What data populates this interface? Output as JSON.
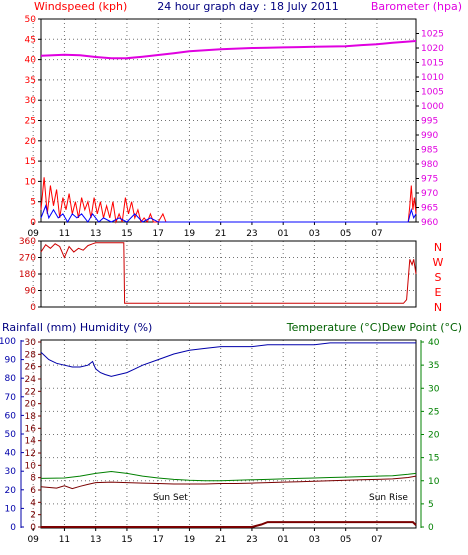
{
  "chart_data": [
    {
      "type": "line",
      "title": "24 hour graph day : 18 July 2011",
      "ylabel_left": "Windspeed (kph)",
      "ylabel_right": "Barometer (hpa)",
      "x_ticks": [
        "11",
        "13",
        "15",
        "17",
        "19",
        "21",
        "23",
        "01",
        "03",
        "05",
        "07",
        "09"
      ],
      "xlim_hours": [
        9.5,
        33.5
      ],
      "ylim_left": [
        0,
        50
      ],
      "ylim_right": [
        960,
        1030
      ],
      "left_ticks": [
        0,
        5,
        10,
        15,
        20,
        25,
        30,
        35,
        40,
        45,
        50
      ],
      "right_ticks": [
        960,
        965,
        970,
        975,
        980,
        985,
        990,
        995,
        1000,
        1005,
        1010,
        1015,
        1020,
        1025
      ],
      "grid": true,
      "series": [
        {
          "name": "Barometer",
          "axis": "right",
          "color": "#e000e0",
          "points": [
            [
              9.5,
              1017.3
            ],
            [
              11.0,
              1017.7
            ],
            [
              12.0,
              1017.5
            ],
            [
              13.0,
              1016.9
            ],
            [
              14.0,
              1016.5
            ],
            [
              15.0,
              1016.5
            ],
            [
              16.0,
              1017.0
            ],
            [
              17.0,
              1017.6
            ],
            [
              18.0,
              1018.2
            ],
            [
              19.0,
              1018.9
            ],
            [
              20.0,
              1019.2
            ],
            [
              21.0,
              1019.6
            ],
            [
              22.0,
              1019.8
            ],
            [
              23.0,
              1020.0
            ],
            [
              24.0,
              1020.1
            ],
            [
              25.0,
              1020.2
            ],
            [
              26.0,
              1020.3
            ],
            [
              27.0,
              1020.4
            ],
            [
              28.0,
              1020.5
            ],
            [
              29.0,
              1020.6
            ],
            [
              30.0,
              1021.0
            ],
            [
              31.0,
              1021.3
            ],
            [
              32.0,
              1021.8
            ],
            [
              33.5,
              1022.4
            ]
          ]
        },
        {
          "name": "Wind gust",
          "axis": "left",
          "color": "#ff0000",
          "points": [
            [
              9.5,
              3
            ],
            [
              9.7,
              11
            ],
            [
              9.9,
              2
            ],
            [
              10.1,
              9
            ],
            [
              10.3,
              4
            ],
            [
              10.5,
              8
            ],
            [
              10.7,
              1
            ],
            [
              10.9,
              6
            ],
            [
              11.1,
              3
            ],
            [
              11.3,
              7
            ],
            [
              11.5,
              2
            ],
            [
              11.7,
              5
            ],
            [
              11.9,
              1
            ],
            [
              12.1,
              6
            ],
            [
              12.3,
              3
            ],
            [
              12.5,
              5
            ],
            [
              12.7,
              1
            ],
            [
              12.9,
              6
            ],
            [
              13.1,
              2
            ],
            [
              13.3,
              5
            ],
            [
              13.5,
              1
            ],
            [
              13.7,
              4
            ],
            [
              13.9,
              1
            ],
            [
              14.1,
              5
            ],
            [
              14.3,
              0
            ],
            [
              14.5,
              2
            ],
            [
              14.7,
              0
            ],
            [
              14.9,
              6
            ],
            [
              15.1,
              2
            ],
            [
              15.3,
              5
            ],
            [
              15.5,
              1
            ],
            [
              15.7,
              3
            ],
            [
              15.9,
              0
            ],
            [
              16.1,
              1
            ],
            [
              16.3,
              0
            ],
            [
              16.5,
              2
            ],
            [
              16.7,
              0
            ],
            [
              17.0,
              0
            ],
            [
              17.3,
              2
            ],
            [
              17.5,
              0
            ],
            [
              33.0,
              0
            ],
            [
              33.1,
              4
            ],
            [
              33.2,
              9
            ],
            [
              33.3,
              3
            ],
            [
              33.4,
              6
            ],
            [
              33.5,
              2
            ]
          ]
        },
        {
          "name": "Wind speed",
          "axis": "left",
          "color": "#0000ff",
          "points": [
            [
              9.5,
              1
            ],
            [
              9.8,
              4
            ],
            [
              10.0,
              1
            ],
            [
              10.3,
              3
            ],
            [
              10.6,
              1
            ],
            [
              10.9,
              2
            ],
            [
              11.2,
              0
            ],
            [
              11.5,
              2
            ],
            [
              11.8,
              1
            ],
            [
              12.1,
              2
            ],
            [
              12.5,
              0
            ],
            [
              12.8,
              2
            ],
            [
              13.2,
              0
            ],
            [
              13.5,
              1
            ],
            [
              14.0,
              0
            ],
            [
              14.5,
              1
            ],
            [
              15.0,
              0
            ],
            [
              15.5,
              2
            ],
            [
              16.0,
              0
            ],
            [
              16.5,
              1
            ],
            [
              17.0,
              0
            ],
            [
              33.0,
              0
            ],
            [
              33.2,
              3
            ],
            [
              33.35,
              1
            ],
            [
              33.5,
              2
            ]
          ]
        }
      ]
    },
    {
      "type": "line",
      "title": "",
      "ylabel_right": "N W S E N",
      "x_ticks": [
        "11",
        "13",
        "15",
        "17",
        "19",
        "21",
        "23",
        "01",
        "03",
        "05",
        "07",
        "09"
      ],
      "xlim_hours": [
        9.5,
        33.5
      ],
      "ylim": [
        0,
        360
      ],
      "left_ticks": [
        0,
        90,
        180,
        270,
        360
      ],
      "compass_labels": [
        "N",
        "W",
        "S",
        "E",
        "N"
      ],
      "grid": true,
      "series": [
        {
          "name": "Wind direction",
          "color": "#cc0000",
          "points": [
            [
              9.5,
              300
            ],
            [
              9.8,
              340
            ],
            [
              10.1,
              320
            ],
            [
              10.4,
              345
            ],
            [
              10.7,
              330
            ],
            [
              11.0,
              270
            ],
            [
              11.3,
              330
            ],
            [
              11.6,
              300
            ],
            [
              11.9,
              320
            ],
            [
              12.2,
              310
            ],
            [
              12.5,
              335
            ],
            [
              12.8,
              345
            ],
            [
              13.0,
              350
            ],
            [
              14.0,
              350
            ],
            [
              14.8,
              350
            ],
            [
              14.85,
              20
            ],
            [
              32.7,
              20
            ],
            [
              32.9,
              40
            ],
            [
              33.1,
              260
            ],
            [
              33.25,
              230
            ],
            [
              33.35,
              260
            ],
            [
              33.5,
              180
            ]
          ]
        }
      ]
    },
    {
      "type": "line",
      "title": "",
      "ylabel_left": "Rainfall (mm)  Humidity (%)",
      "ylabel_right": "Temperature (°C)Dew Point (°C)",
      "x_ticks": [
        "11",
        "13",
        "15",
        "17",
        "19",
        "21",
        "23",
        "01",
        "03",
        "05",
        "07",
        "09"
      ],
      "xlim_hours": [
        9.5,
        33.5
      ],
      "humidity_ticks": [
        0,
        10,
        20,
        30,
        40,
        50,
        60,
        70,
        80,
        90,
        100
      ],
      "rainfall_ticks": [
        0,
        2,
        4,
        6,
        8,
        10,
        12,
        14,
        16,
        18,
        20,
        22,
        24,
        26,
        28,
        30
      ],
      "temperature_ticks": [
        0,
        5,
        10,
        15,
        20,
        25,
        30,
        35,
        40
      ],
      "annotations": [
        "Sun Set",
        "Sun Rise"
      ],
      "grid": true,
      "series": [
        {
          "name": "Humidity",
          "axis": "humidity",
          "color": "#0000aa",
          "points": [
            [
              9.5,
              94
            ],
            [
              10.0,
              90
            ],
            [
              10.5,
              88
            ],
            [
              11.0,
              87
            ],
            [
              11.5,
              86
            ],
            [
              12.0,
              86
            ],
            [
              12.5,
              87
            ],
            [
              12.8,
              89
            ],
            [
              13.0,
              85
            ],
            [
              13.3,
              83
            ],
            [
              13.6,
              82
            ],
            [
              14.0,
              81
            ],
            [
              14.5,
              82
            ],
            [
              15.0,
              83
            ],
            [
              15.5,
              85
            ],
            [
              16.0,
              87
            ],
            [
              17.0,
              90
            ],
            [
              18.0,
              93
            ],
            [
              19.0,
              95
            ],
            [
              20.0,
              96
            ],
            [
              21.0,
              97
            ],
            [
              22.0,
              97
            ],
            [
              23.0,
              97
            ],
            [
              24.0,
              98
            ],
            [
              25.0,
              98
            ],
            [
              26.0,
              98
            ],
            [
              27.0,
              98
            ],
            [
              28.0,
              99
            ],
            [
              29.0,
              99
            ],
            [
              30.0,
              99
            ],
            [
              31.0,
              99
            ],
            [
              32.0,
              99
            ],
            [
              33.5,
              99
            ]
          ]
        },
        {
          "name": "Temperature",
          "axis": "temperature",
          "color": "#008000",
          "points": [
            [
              9.5,
              10.5
            ],
            [
              11.0,
              10.6
            ],
            [
              12.0,
              11.0
            ],
            [
              13.0,
              11.6
            ],
            [
              14.0,
              12.0
            ],
            [
              15.0,
              11.6
            ],
            [
              16.0,
              11.0
            ],
            [
              17.0,
              10.6
            ],
            [
              18.0,
              10.3
            ],
            [
              19.0,
              10.1
            ],
            [
              20.0,
              10.0
            ],
            [
              21.0,
              10.0
            ],
            [
              22.0,
              10.1
            ],
            [
              23.0,
              10.2
            ],
            [
              24.0,
              10.3
            ],
            [
              25.0,
              10.4
            ],
            [
              26.0,
              10.5
            ],
            [
              27.0,
              10.6
            ],
            [
              28.0,
              10.7
            ],
            [
              29.0,
              10.8
            ],
            [
              30.0,
              10.9
            ],
            [
              31.0,
              11.0
            ],
            [
              32.0,
              11.1
            ],
            [
              33.0,
              11.4
            ],
            [
              33.5,
              11.6
            ]
          ]
        },
        {
          "name": "Dew Point",
          "axis": "temperature",
          "color": "#7a0000",
          "points": [
            [
              9.5,
              8.7
            ],
            [
              10.5,
              8.4
            ],
            [
              11.0,
              8.9
            ],
            [
              11.5,
              8.3
            ],
            [
              12.0,
              8.8
            ],
            [
              12.5,
              9.2
            ],
            [
              13.0,
              9.6
            ],
            [
              14.0,
              9.7
            ],
            [
              15.0,
              9.6
            ],
            [
              16.0,
              9.5
            ],
            [
              17.0,
              9.4
            ],
            [
              18.0,
              9.3
            ],
            [
              19.0,
              9.3
            ],
            [
              20.0,
              9.3
            ],
            [
              21.0,
              9.4
            ],
            [
              22.0,
              9.4
            ],
            [
              23.0,
              9.5
            ],
            [
              24.0,
              9.6
            ],
            [
              25.0,
              9.7
            ],
            [
              26.0,
              9.8
            ],
            [
              27.0,
              9.9
            ],
            [
              28.0,
              10.0
            ],
            [
              29.0,
              10.1
            ],
            [
              30.0,
              10.2
            ],
            [
              31.0,
              10.3
            ],
            [
              32.0,
              10.4
            ],
            [
              33.0,
              10.7
            ],
            [
              33.5,
              11.0
            ]
          ]
        },
        {
          "name": "Rainfall",
          "axis": "rainfall",
          "color": "#7a0000",
          "points": [
            [
              9.5,
              0.0
            ],
            [
              23.0,
              0.0
            ],
            [
              23.6,
              0.4
            ],
            [
              24.0,
              0.8
            ],
            [
              33.3,
              0.8
            ],
            [
              33.5,
              0.3
            ]
          ]
        }
      ]
    }
  ]
}
